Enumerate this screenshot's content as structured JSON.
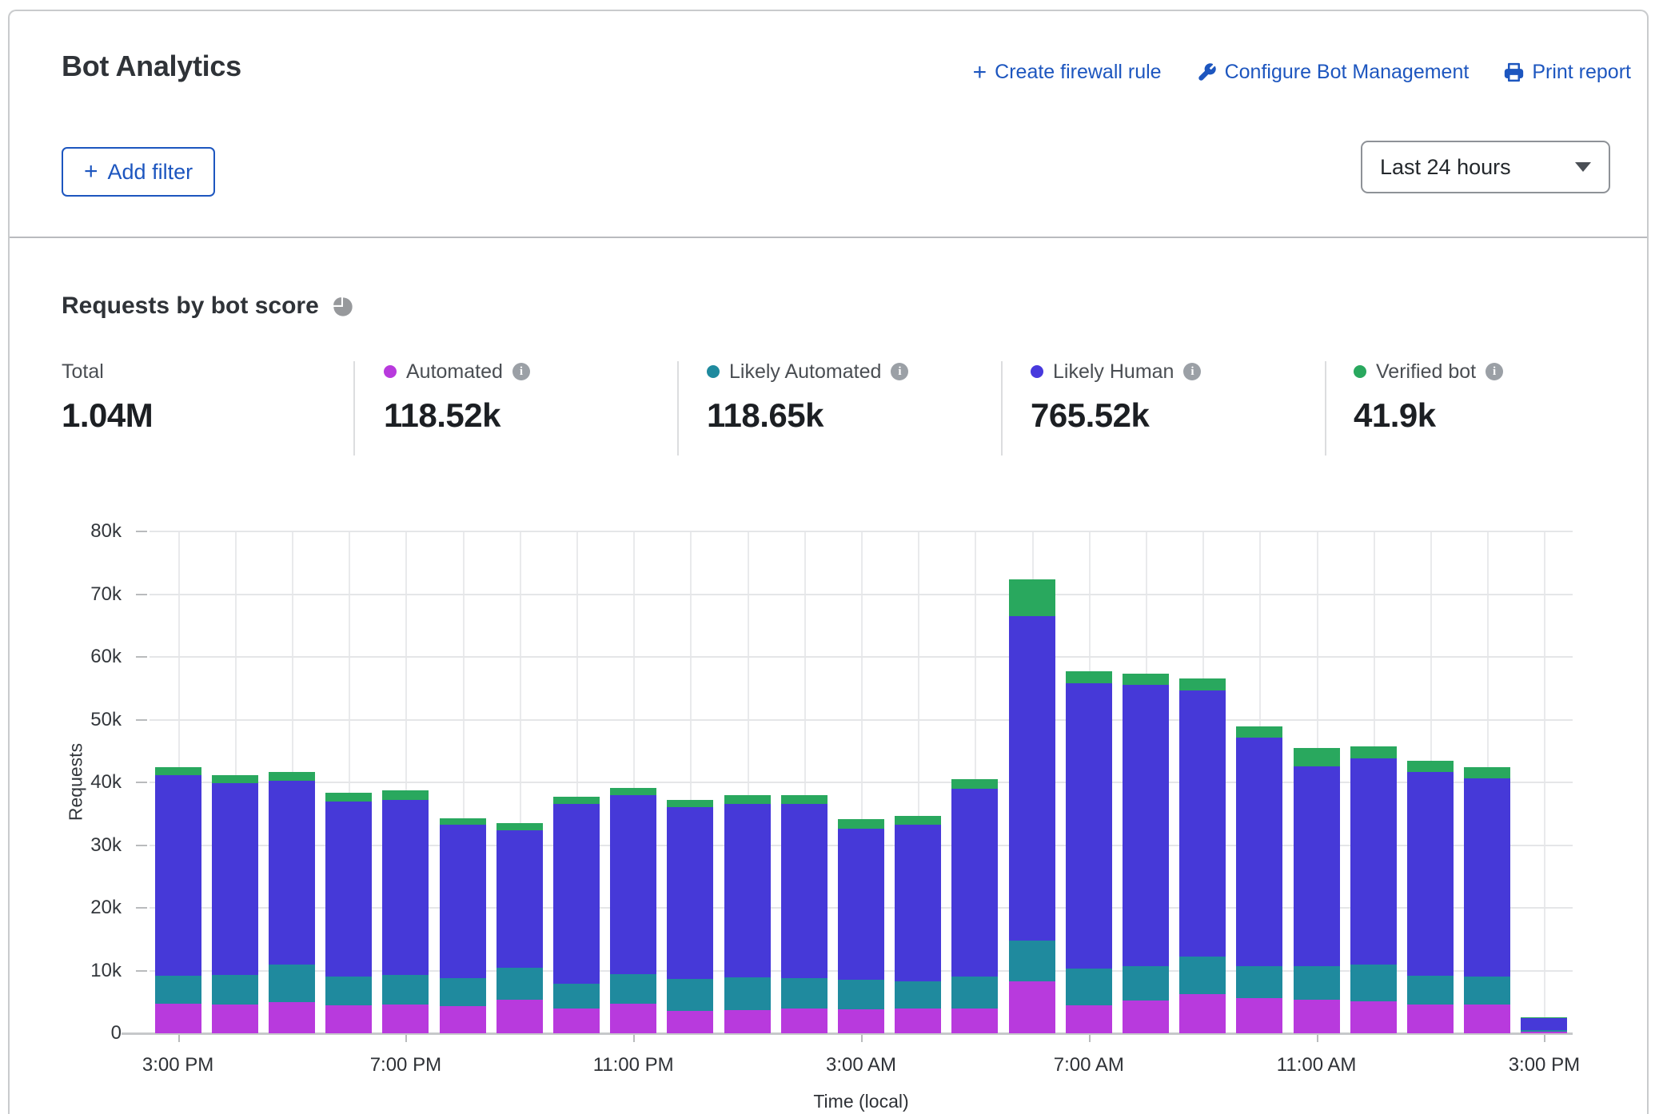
{
  "header": {
    "title": "Bot Analytics",
    "actions": [
      {
        "label": "Create firewall rule",
        "icon": "plus-icon"
      },
      {
        "label": "Configure Bot Management",
        "icon": "wrench-icon"
      },
      {
        "label": "Print report",
        "icon": "printer-icon"
      }
    ],
    "add_filter_label": "Add filter",
    "time_range_value": "Last 24 hours"
  },
  "section": {
    "title": "Requests by bot score"
  },
  "stats": {
    "columns": [
      {
        "label": "Total",
        "value": "1.04M",
        "color": null,
        "info": false
      },
      {
        "label": "Automated",
        "value": "118.52k",
        "color": "#b83add",
        "info": true
      },
      {
        "label": "Likely Automated",
        "value": "118.65k",
        "color": "#1f8a9e",
        "info": true
      },
      {
        "label": "Likely Human",
        "value": "765.52k",
        "color": "#4739dd",
        "info": true
      },
      {
        "label": "Verified bot",
        "value": "41.9k",
        "color": "#29a85e",
        "info": true
      }
    ]
  },
  "chart_data": {
    "type": "bar",
    "stacked": true,
    "title": "Requests by bot score",
    "xlabel": "Time (local)",
    "ylabel": "Requests",
    "ylim": [
      0,
      80000
    ],
    "grid": true,
    "y_tick_labels": [
      "0",
      "10k",
      "20k",
      "30k",
      "40k",
      "50k",
      "60k",
      "70k",
      "80k"
    ],
    "x_tick_labels": [
      "3:00 PM",
      "7:00 PM",
      "11:00 PM",
      "3:00 AM",
      "7:00 AM",
      "11:00 AM",
      "3:00 PM"
    ],
    "x_tick_indices": [
      0,
      4,
      8,
      12,
      16,
      20,
      24
    ],
    "categories": [
      "3:00 PM",
      "4:00 PM",
      "5:00 PM",
      "6:00 PM",
      "7:00 PM",
      "8:00 PM",
      "9:00 PM",
      "10:00 PM",
      "11:00 PM",
      "12:00 AM",
      "1:00 AM",
      "2:00 AM",
      "3:00 AM",
      "4:00 AM",
      "5:00 AM",
      "6:00 AM",
      "7:00 AM",
      "8:00 AM",
      "9:00 AM",
      "10:00 AM",
      "11:00 AM",
      "12:00 PM",
      "1:00 PM",
      "2:00 PM",
      "3:00 PM"
    ],
    "series": [
      {
        "name": "Automated",
        "color": "#b83add",
        "values": [
          4700,
          4600,
          5000,
          4400,
          4600,
          4300,
          5300,
          3900,
          4700,
          3600,
          3700,
          3900,
          3800,
          3900,
          4000,
          8300,
          4500,
          5200,
          6300,
          5600,
          5300,
          5100,
          4600,
          4600,
          200
        ]
      },
      {
        "name": "Likely Automated",
        "color": "#1f8a9e",
        "values": [
          4500,
          4700,
          6000,
          4600,
          4700,
          4500,
          5200,
          4000,
          4700,
          5000,
          5200,
          4900,
          4700,
          4400,
          5000,
          6500,
          5800,
          5500,
          5900,
          5100,
          5400,
          5900,
          4600,
          4400,
          300
        ]
      },
      {
        "name": "Likely Human",
        "color": "#4639d8",
        "values": [
          31900,
          30600,
          29200,
          27900,
          27900,
          24400,
          21900,
          28600,
          28600,
          27400,
          27700,
          27700,
          24100,
          24900,
          30000,
          51700,
          45500,
          44900,
          42500,
          36400,
          31900,
          32800,
          32400,
          31600,
          1900
        ]
      },
      {
        "name": "Verified bot",
        "color": "#29a85e",
        "values": [
          1300,
          1300,
          1500,
          1500,
          1500,
          1100,
          1100,
          1200,
          1100,
          1200,
          1300,
          1400,
          1600,
          1500,
          1500,
          5800,
          1900,
          1700,
          1800,
          1800,
          2900,
          1900,
          1800,
          1800,
          100
        ]
      }
    ]
  }
}
